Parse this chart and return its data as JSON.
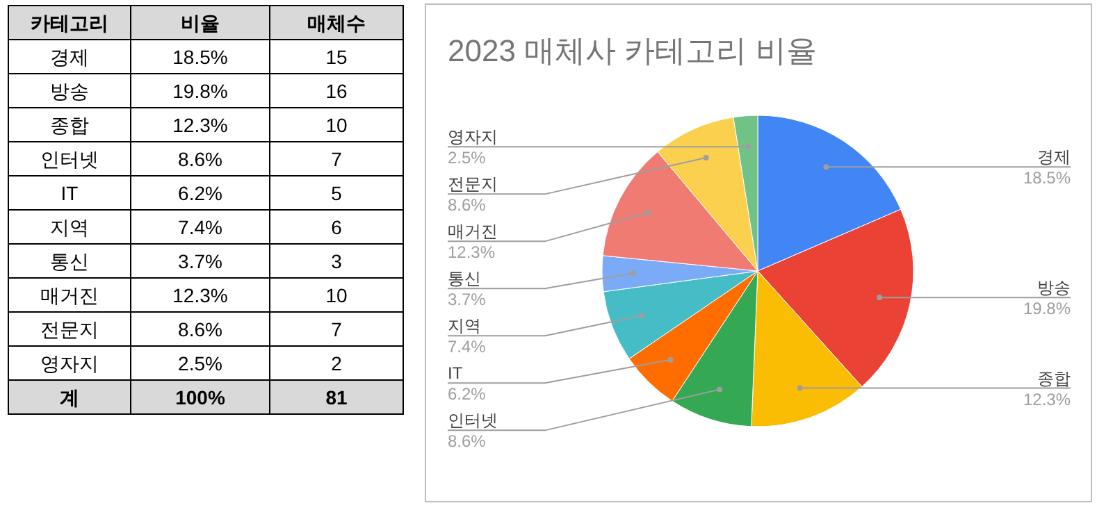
{
  "chart_data": [
    {
      "type": "other",
      "cell_labels": [
        [
          "카테고리",
          "비율",
          "매체수"
        ],
        [
          "경제",
          "18.5%",
          "15"
        ],
        [
          "방송",
          "19.8%",
          "16"
        ],
        [
          "종합",
          "12.3%",
          "10"
        ],
        [
          "인터넷",
          "8.6%",
          "7"
        ],
        [
          "IT",
          "6.2%",
          "5"
        ],
        [
          "지역",
          "7.4%",
          "6"
        ],
        [
          "통신",
          "3.7%",
          "3"
        ],
        [
          "매거진",
          "12.3%",
          "10"
        ],
        [
          "전문지",
          "8.6%",
          "7"
        ],
        [
          "영자지",
          "2.5%",
          "2"
        ],
        [
          "계",
          "100%",
          "81"
        ]
      ]
    },
    {
      "type": "pie",
      "title": "2023 매체사 카테고리 비율",
      "categories": [
        "경제",
        "방송",
        "종합",
        "인터넷",
        "IT",
        "지역",
        "통신",
        "매거진",
        "전문지",
        "영자지"
      ],
      "values": [
        18.5,
        19.8,
        12.3,
        8.6,
        6.2,
        7.4,
        3.7,
        12.3,
        8.6,
        2.5
      ],
      "colors": [
        "#4285f4",
        "#ea4335",
        "#fbbc04",
        "#34a853",
        "#ff6d01",
        "#46bdc6",
        "#7baaf7",
        "#f07b72",
        "#fcd04f",
        "#71c287"
      ],
      "value_labels": [
        "18.5%",
        "19.8%",
        "12.3%",
        "8.6%",
        "6.2%",
        "7.4%",
        "3.7%",
        "12.3%",
        "8.6%",
        "2.5%"
      ]
    }
  ]
}
